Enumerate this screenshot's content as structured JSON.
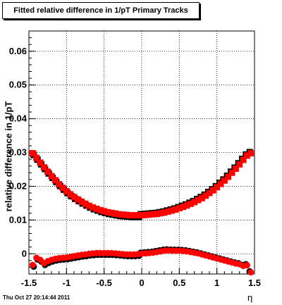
{
  "title": "Fitted relative difference in 1/pT  Primary Tracks",
  "timestamp": "Thu Oct 27 20:14:44 2011",
  "chart_data": {
    "type": "scatter",
    "title": "Fitted relative difference in 1/pT  Primary Tracks",
    "xlabel": "η",
    "ylabel": "relative difference in 1/pT",
    "xlim": [
      -1.5,
      1.5
    ],
    "ylim": [
      -0.006,
      0.066
    ],
    "grid": true,
    "x_ticks": [
      "-1.5",
      "-1",
      "-0.5",
      "0",
      "0.5",
      "1",
      "1.5"
    ],
    "y_ticks": [
      "0",
      "0.01",
      "0.02",
      "0.03",
      "0.04",
      "0.05",
      "0.06"
    ],
    "series": [
      {
        "color": "#ff0000",
        "marker": "square",
        "points": [
          [
            -1.45,
            0.0298
          ],
          [
            -1.4,
            0.0284
          ],
          [
            -1.35,
            0.027
          ],
          [
            -1.3,
            0.0256
          ],
          [
            -1.25,
            0.0243
          ],
          [
            -1.2,
            0.023
          ],
          [
            -1.15,
            0.0218
          ],
          [
            -1.1,
            0.0206
          ],
          [
            -1.05,
            0.0195
          ],
          [
            -1.0,
            0.0185
          ],
          [
            -0.95,
            0.0176
          ],
          [
            -0.9,
            0.0168
          ],
          [
            -0.85,
            0.0161
          ],
          [
            -0.8,
            0.0154
          ],
          [
            -0.75,
            0.0148
          ],
          [
            -0.7,
            0.0142
          ],
          [
            -0.65,
            0.0137
          ],
          [
            -0.6,
            0.0133
          ],
          [
            -0.55,
            0.0129
          ],
          [
            -0.5,
            0.0126
          ],
          [
            -0.45,
            0.0123
          ],
          [
            -0.4,
            0.0121
          ],
          [
            -0.35,
            0.0119
          ],
          [
            -0.3,
            0.0117
          ],
          [
            -0.25,
            0.0116
          ],
          [
            -0.2,
            0.0115
          ],
          [
            -0.15,
            0.0114
          ],
          [
            -0.1,
            0.0114
          ],
          [
            -0.05,
            0.0114
          ],
          [
            0.0,
            0.0114
          ],
          [
            0.05,
            0.0115
          ],
          [
            0.1,
            0.0116
          ],
          [
            0.15,
            0.0117
          ],
          [
            0.2,
            0.0118
          ],
          [
            0.25,
            0.012
          ],
          [
            0.3,
            0.0122
          ],
          [
            0.35,
            0.0125
          ],
          [
            0.4,
            0.0128
          ],
          [
            0.45,
            0.0131
          ],
          [
            0.5,
            0.0135
          ],
          [
            0.55,
            0.0139
          ],
          [
            0.6,
            0.0143
          ],
          [
            0.65,
            0.0148
          ],
          [
            0.7,
            0.0153
          ],
          [
            0.75,
            0.0159
          ],
          [
            0.8,
            0.0165
          ],
          [
            0.85,
            0.0172
          ],
          [
            0.9,
            0.018
          ],
          [
            0.95,
            0.0188
          ],
          [
            1.0,
            0.0197
          ],
          [
            1.05,
            0.0207
          ],
          [
            1.1,
            0.0217
          ],
          [
            1.15,
            0.0228
          ],
          [
            1.2,
            0.024
          ],
          [
            1.25,
            0.0252
          ],
          [
            1.3,
            0.0265
          ],
          [
            1.35,
            0.0278
          ],
          [
            1.4,
            0.0291
          ],
          [
            1.45,
            0.0298
          ]
        ]
      },
      {
        "color": "#ff0000",
        "marker": "circle",
        "points": [
          [
            -1.45,
            -0.0033
          ],
          [
            -1.4,
            -0.0012
          ],
          [
            -1.35,
            -0.0018
          ],
          [
            -1.3,
            -0.0028
          ],
          [
            -1.25,
            -0.0022
          ],
          [
            -1.2,
            -0.0018
          ],
          [
            -1.15,
            -0.0015
          ],
          [
            -1.1,
            -0.0013
          ],
          [
            -1.05,
            -0.0012
          ],
          [
            -1.0,
            -0.0011
          ],
          [
            -0.95,
            -0.0009
          ],
          [
            -0.9,
            -0.0007
          ],
          [
            -0.85,
            -0.0005
          ],
          [
            -0.8,
            -0.0003
          ],
          [
            -0.75,
            -0.0002
          ],
          [
            -0.7,
            0.0
          ],
          [
            -0.65,
            0.0001
          ],
          [
            -0.6,
            0.0002
          ],
          [
            -0.55,
            0.0002
          ],
          [
            -0.5,
            0.0002
          ],
          [
            -0.45,
            0.0002
          ],
          [
            -0.4,
            0.0002
          ],
          [
            -0.35,
            0.0001
          ],
          [
            -0.3,
            0.0
          ],
          [
            -0.25,
            -0.0001
          ],
          [
            -0.2,
            -0.0002
          ],
          [
            -0.15,
            -0.0002
          ],
          [
            -0.1,
            -0.0002
          ],
          [
            -0.05,
            -0.0001
          ],
          [
            0.0,
            0.0
          ],
          [
            0.05,
            0.0001
          ],
          [
            0.1,
            0.0002
          ],
          [
            0.15,
            0.0003
          ],
          [
            0.2,
            0.0005
          ],
          [
            0.25,
            0.0007
          ],
          [
            0.3,
            0.0009
          ],
          [
            0.35,
            0.001
          ],
          [
            0.4,
            0.0009
          ],
          [
            0.45,
            0.0009
          ],
          [
            0.5,
            0.0009
          ],
          [
            0.55,
            0.0008
          ],
          [
            0.6,
            0.0007
          ],
          [
            0.65,
            0.0005
          ],
          [
            0.7,
            0.0003
          ],
          [
            0.75,
            0.0001
          ],
          [
            0.8,
            -0.0002
          ],
          [
            0.85,
            -0.0005
          ],
          [
            0.9,
            -0.0008
          ],
          [
            0.95,
            -0.0011
          ],
          [
            1.0,
            -0.0014
          ],
          [
            1.05,
            -0.0017
          ],
          [
            1.1,
            -0.002
          ],
          [
            1.15,
            -0.0023
          ],
          [
            1.2,
            -0.0026
          ],
          [
            1.25,
            -0.0029
          ],
          [
            1.3,
            -0.0031
          ],
          [
            1.35,
            -0.0036
          ],
          [
            1.4,
            -0.0034
          ],
          [
            1.45,
            -0.0055
          ]
        ]
      }
    ]
  }
}
